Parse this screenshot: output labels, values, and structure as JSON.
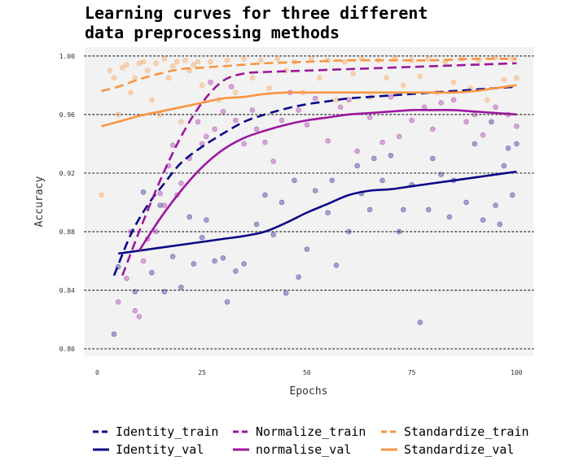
{
  "chart_data": {
    "type": "line",
    "title": "Learning curves for three different\ndata preprocessing methods",
    "xlabel": "Epochs",
    "ylabel": "Accuracy",
    "xlim": [
      -3,
      104
    ],
    "ylim": [
      0.795,
      1.006
    ],
    "xticks": [
      0,
      25,
      50,
      75,
      100
    ],
    "yticks": [
      0.8,
      0.84,
      0.88,
      0.92,
      0.96,
      1.0
    ],
    "ytick_labels": [
      "0.80",
      "0.84",
      "0.88",
      "0.92",
      "0.96",
      "1.00"
    ],
    "grid": "horizontal dotted",
    "legend_position": "bottom",
    "series": [
      {
        "name": "Identity_train",
        "color": "#0d0887",
        "style": "dashed",
        "x": [
          4,
          8,
          12,
          16,
          20,
          25,
          30,
          35,
          40,
          45,
          50,
          55,
          60,
          65,
          70,
          75,
          80,
          85,
          90,
          95,
          100
        ],
        "values": [
          0.85,
          0.878,
          0.898,
          0.913,
          0.927,
          0.938,
          0.947,
          0.955,
          0.96,
          0.964,
          0.967,
          0.969,
          0.971,
          0.972,
          0.973,
          0.974,
          0.975,
          0.976,
          0.977,
          0.978,
          0.979
        ]
      },
      {
        "name": "Identity_val",
        "color": "#0d0887",
        "style": "solid",
        "x": [
          5,
          10,
          15,
          20,
          25,
          30,
          35,
          40,
          45,
          50,
          55,
          60,
          65,
          70,
          75,
          80,
          85,
          90,
          95,
          100
        ],
        "values": [
          0.865,
          0.867,
          0.869,
          0.871,
          0.873,
          0.875,
          0.877,
          0.88,
          0.886,
          0.893,
          0.899,
          0.905,
          0.908,
          0.909,
          0.911,
          0.913,
          0.915,
          0.917,
          0.919,
          0.921
        ]
      },
      {
        "name": "Normalize_train",
        "color": "#9c179e",
        "style": "dashed",
        "x": [
          6,
          10,
          15,
          20,
          25,
          30,
          35,
          40,
          50,
          60,
          70,
          80,
          90,
          100
        ],
        "values": [
          0.85,
          0.88,
          0.915,
          0.945,
          0.968,
          0.983,
          0.988,
          0.989,
          0.99,
          0.991,
          0.992,
          0.993,
          0.994,
          0.995
        ]
      },
      {
        "name": "normalise_val",
        "color": "#9c179e",
        "style": "solid",
        "x": [
          10,
          15,
          20,
          25,
          30,
          35,
          40,
          45,
          50,
          55,
          60,
          65,
          70,
          75,
          80,
          85,
          90,
          95,
          100
        ],
        "values": [
          0.867,
          0.889,
          0.908,
          0.924,
          0.936,
          0.944,
          0.949,
          0.953,
          0.956,
          0.958,
          0.96,
          0.961,
          0.962,
          0.963,
          0.963,
          0.963,
          0.962,
          0.961,
          0.96
        ]
      },
      {
        "name": "Standardize_train",
        "color": "#f89540",
        "style": "dashed",
        "x": [
          1,
          5,
          10,
          15,
          20,
          25,
          30,
          35,
          40,
          50,
          60,
          70,
          80,
          90,
          100
        ],
        "values": [
          0.976,
          0.979,
          0.984,
          0.988,
          0.991,
          0.992,
          0.993,
          0.994,
          0.995,
          0.996,
          0.997,
          0.997,
          0.997,
          0.998,
          0.998
        ]
      },
      {
        "name": "Standardize_val",
        "color": "#f89540",
        "style": "solid",
        "x": [
          1,
          5,
          10,
          15,
          20,
          25,
          30,
          35,
          40,
          45,
          50,
          55,
          60,
          65,
          70,
          75,
          80,
          85,
          90,
          95,
          100
        ],
        "values": [
          0.952,
          0.955,
          0.959,
          0.962,
          0.965,
          0.968,
          0.971,
          0.972,
          0.974,
          0.975,
          0.975,
          0.975,
          0.975,
          0.975,
          0.975,
          0.975,
          0.975,
          0.975,
          0.976,
          0.978,
          0.98
        ]
      }
    ],
    "scatter_points": [
      {
        "series": "Identity_val",
        "color": "#0d0887",
        "x": [
          4,
          5,
          9,
          11,
          13,
          15,
          16,
          18,
          20,
          22,
          23,
          25,
          26,
          28,
          30,
          31,
          33,
          35,
          38,
          40,
          42,
          44,
          45,
          47,
          48,
          50,
          52,
          55,
          56,
          57,
          60,
          62,
          63,
          65,
          66,
          68,
          70,
          72,
          73,
          75,
          77,
          79,
          80,
          82,
          84,
          85,
          88,
          90,
          92,
          94,
          95,
          96,
          97,
          98,
          99,
          100
        ],
        "y": [
          0.81,
          0.856,
          0.839,
          0.907,
          0.852,
          0.898,
          0.839,
          0.863,
          0.842,
          0.89,
          0.858,
          0.876,
          0.888,
          0.86,
          0.862,
          0.832,
          0.853,
          0.858,
          0.885,
          0.905,
          0.878,
          0.9,
          0.838,
          0.915,
          0.849,
          0.868,
          0.908,
          0.893,
          0.915,
          0.857,
          0.88,
          0.925,
          0.906,
          0.895,
          0.93,
          0.915,
          0.932,
          0.88,
          0.895,
          0.912,
          0.818,
          0.895,
          0.93,
          0.919,
          0.89,
          0.915,
          0.9,
          0.94,
          0.888,
          0.955,
          0.898,
          0.885,
          0.925,
          0.937,
          0.905,
          0.94
        ]
      },
      {
        "series": "Normalize",
        "color": "#9c179e",
        "x": [
          5,
          7,
          8,
          9,
          10,
          11,
          12,
          14,
          15,
          16,
          17,
          18,
          19,
          20,
          22,
          24,
          25,
          26,
          27,
          28,
          30,
          32,
          33,
          35,
          37,
          38,
          40,
          42,
          44,
          46,
          48,
          50,
          52,
          55,
          58,
          60,
          62,
          65,
          68,
          70,
          72,
          75,
          78,
          80,
          82,
          85,
          88,
          90,
          92,
          95,
          98,
          100
        ],
        "y": [
          0.832,
          0.848,
          0.88,
          0.826,
          0.822,
          0.86,
          0.875,
          0.88,
          0.906,
          0.898,
          0.925,
          0.939,
          0.905,
          0.913,
          0.93,
          0.955,
          0.94,
          0.945,
          0.982,
          0.95,
          0.962,
          0.979,
          0.956,
          0.94,
          0.963,
          0.95,
          0.941,
          0.928,
          0.956,
          0.975,
          0.963,
          0.953,
          0.971,
          0.942,
          0.965,
          0.97,
          0.935,
          0.958,
          0.941,
          0.972,
          0.945,
          0.956,
          0.965,
          0.95,
          0.968,
          0.97,
          0.955,
          0.96,
          0.946,
          0.965,
          0.96,
          0.952
        ]
      },
      {
        "series": "Standardize",
        "color": "#f89540",
        "x": [
          1,
          3,
          4,
          5,
          6,
          7,
          8,
          9,
          10,
          11,
          12,
          13,
          14,
          15,
          16,
          17,
          18,
          19,
          20,
          21,
          22,
          23,
          24,
          25,
          27,
          29,
          31,
          33,
          35,
          37,
          39,
          41,
          43,
          45,
          47,
          49,
          51,
          53,
          55,
          57,
          59,
          61,
          63,
          65,
          67,
          69,
          71,
          73,
          75,
          77,
          79,
          81,
          83,
          85,
          87,
          89,
          91,
          93,
          95,
          97,
          99,
          100
        ],
        "y": [
          0.905,
          0.99,
          0.985,
          0.96,
          0.992,
          0.994,
          0.975,
          0.985,
          0.995,
          0.996,
          0.99,
          0.97,
          0.995,
          0.96,
          0.998,
          0.985,
          0.993,
          0.996,
          0.955,
          0.997,
          0.99,
          0.994,
          0.996,
          0.98,
          0.996,
          0.97,
          0.997,
          0.975,
          0.998,
          0.985,
          0.997,
          0.978,
          0.998,
          0.99,
          0.996,
          0.975,
          0.998,
          0.985,
          0.997,
          0.97,
          0.996,
          0.988,
          0.998,
          0.972,
          0.997,
          0.985,
          0.999,
          0.98,
          0.997,
          0.986,
          0.998,
          0.975,
          0.996,
          0.982,
          0.998,
          0.978,
          0.997,
          0.97,
          0.999,
          0.984,
          0.998,
          0.985
        ]
      }
    ]
  }
}
